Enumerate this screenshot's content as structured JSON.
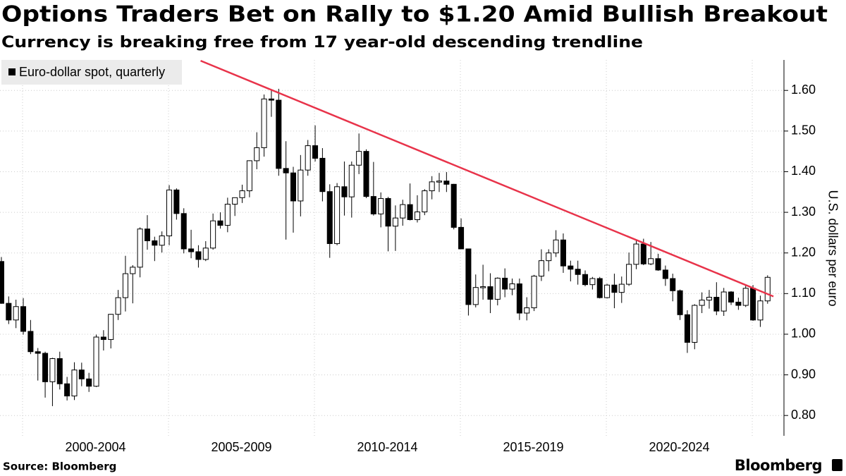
{
  "chart_data": {
    "type": "candlestick",
    "title": "Options Traders Bet on Rally to $1.20 Amid Bullish Breakout",
    "subtitle": "Currency is breaking free from 17 year-old descending trendline",
    "y_label": "U.S. dollars per euro",
    "source": "Source: Bloomberg",
    "brand": "Bloomberg",
    "legend_position": "top-left",
    "categories": [
      null,
      null,
      null,
      null,
      null,
      null,
      null,
      null,
      null,
      null,
      null,
      null,
      null,
      null,
      null,
      null,
      null,
      null,
      null,
      null,
      null,
      null,
      null,
      null,
      null,
      null,
      null,
      null,
      null,
      null,
      null,
      null,
      null,
      null,
      null,
      null,
      null,
      null,
      null,
      null,
      null,
      null,
      null,
      null,
      null,
      null,
      null,
      null,
      null,
      null,
      null,
      null,
      null,
      null,
      null,
      null,
      null,
      null,
      null,
      null,
      null,
      null,
      null,
      null,
      null,
      null,
      null,
      null,
      null,
      null,
      null,
      null,
      null,
      null,
      null,
      null,
      null,
      null,
      null,
      null,
      null,
      null,
      null,
      null,
      null,
      null,
      null,
      null,
      null,
      null,
      null,
      null,
      null,
      null,
      null,
      null,
      null,
      null,
      null,
      null,
      null,
      null,
      null,
      null,
      null,
      null
    ],
    "series": [
      {
        "name": "Euro-dollar spot, quarterly",
        "up_color": "#ffffff",
        "down_color": "#000000",
        "open": [
          1.179,
          1.076,
          1.035,
          1.068,
          1.007,
          0.957,
          0.953,
          0.883,
          0.94,
          0.878,
          0.848,
          0.912,
          0.89,
          0.872,
          0.993,
          0.987,
          1.049,
          1.09,
          1.149,
          1.165,
          1.259,
          1.23,
          1.219,
          1.242,
          1.355,
          1.297,
          1.21,
          1.203,
          1.184,
          1.212,
          1.279,
          1.268,
          1.32,
          1.336,
          1.353,
          1.427,
          1.459,
          1.579,
          1.576,
          1.408,
          1.397,
          1.328,
          1.404,
          1.464,
          1.433,
          1.351,
          1.223,
          1.363,
          1.338,
          1.416,
          1.45,
          1.339,
          1.296,
          1.334,
          1.266,
          1.286,
          1.319,
          1.282,
          1.301,
          1.353,
          1.375,
          1.377,
          1.369,
          1.263,
          1.21,
          1.073,
          1.115,
          1.117,
          1.086,
          1.138,
          1.111,
          1.124,
          1.052,
          1.065,
          1.143,
          1.181,
          1.2,
          1.232,
          1.168,
          1.16,
          1.147,
          1.122,
          1.137,
          1.09,
          1.121,
          1.103,
          1.123,
          1.172,
          1.222,
          1.173,
          1.186,
          1.158,
          1.137,
          1.107,
          1.048,
          0.98,
          1.071,
          1.084,
          1.091,
          1.057,
          1.104,
          1.079,
          1.071,
          1.113,
          1.035,
          1.082
        ],
        "high": [
          1.19,
          1.093,
          1.085,
          1.089,
          1.035,
          0.966,
          0.957,
          0.942,
          0.957,
          0.895,
          0.931,
          0.93,
          0.905,
          0.999,
          1.01,
          1.05,
          1.109,
          1.193,
          1.17,
          1.263,
          1.293,
          1.24,
          1.253,
          1.367,
          1.359,
          1.31,
          1.257,
          1.219,
          1.229,
          1.297,
          1.3,
          1.336,
          1.336,
          1.368,
          1.428,
          1.497,
          1.59,
          1.602,
          1.604,
          1.475,
          1.412,
          1.441,
          1.478,
          1.514,
          1.458,
          1.369,
          1.372,
          1.425,
          1.425,
          1.494,
          1.455,
          1.424,
          1.349,
          1.338,
          1.317,
          1.331,
          1.371,
          1.342,
          1.357,
          1.389,
          1.397,
          1.399,
          1.37,
          1.285,
          1.21,
          1.147,
          1.171,
          1.15,
          1.14,
          1.162,
          1.137,
          1.137,
          1.091,
          1.146,
          1.209,
          1.209,
          1.256,
          1.248,
          1.181,
          1.181,
          1.157,
          1.141,
          1.141,
          1.124,
          1.149,
          1.142,
          1.201,
          1.231,
          1.235,
          1.227,
          1.198,
          1.169,
          1.149,
          1.11,
          1.059,
          1.074,
          1.103,
          1.109,
          1.128,
          1.114,
          1.106,
          1.09,
          1.121,
          1.121,
          1.095,
          1.145
        ],
        "low": [
          1.075,
          1.025,
          1.015,
          0.999,
          0.951,
          0.886,
          0.844,
          0.823,
          0.864,
          0.837,
          0.838,
          0.872,
          0.858,
          0.87,
          0.96,
          0.965,
          1.035,
          1.056,
          1.076,
          1.14,
          1.208,
          1.18,
          1.201,
          1.219,
          1.282,
          1.199,
          1.187,
          1.164,
          1.18,
          1.208,
          1.26,
          1.251,
          1.291,
          1.323,
          1.337,
          1.406,
          1.437,
          1.535,
          1.39,
          1.233,
          1.25,
          1.29,
          1.39,
          1.425,
          1.327,
          1.188,
          1.219,
          1.292,
          1.287,
          1.394,
          1.335,
          1.292,
          1.263,
          1.204,
          1.205,
          1.267,
          1.28,
          1.275,
          1.293,
          1.332,
          1.35,
          1.35,
          1.258,
          1.21,
          1.046,
          1.066,
          1.085,
          1.052,
          1.071,
          1.091,
          1.096,
          1.035,
          1.034,
          1.057,
          1.131,
          1.155,
          1.19,
          1.151,
          1.13,
          1.122,
          1.118,
          1.11,
          1.088,
          1.088,
          1.064,
          1.077,
          1.119,
          1.16,
          1.17,
          1.17,
          1.156,
          1.119,
          1.081,
          1.035,
          0.954,
          0.963,
          1.052,
          1.063,
          1.047,
          1.045,
          1.072,
          1.06,
          1.067,
          1.033,
          1.018,
          1.075
        ],
        "close": [
          1.076,
          1.035,
          1.068,
          1.007,
          0.957,
          0.953,
          0.883,
          0.94,
          0.878,
          0.848,
          0.912,
          0.89,
          0.872,
          0.993,
          0.987,
          1.049,
          1.09,
          1.149,
          1.165,
          1.259,
          1.23,
          1.219,
          1.242,
          1.355,
          1.297,
          1.21,
          1.203,
          1.184,
          1.212,
          1.279,
          1.268,
          1.32,
          1.336,
          1.353,
          1.427,
          1.459,
          1.579,
          1.576,
          1.408,
          1.397,
          1.328,
          1.404,
          1.464,
          1.433,
          1.351,
          1.223,
          1.363,
          1.338,
          1.416,
          1.45,
          1.339,
          1.296,
          1.334,
          1.266,
          1.286,
          1.319,
          1.282,
          1.301,
          1.353,
          1.375,
          1.377,
          1.369,
          1.263,
          1.21,
          1.073,
          1.115,
          1.117,
          1.086,
          1.138,
          1.111,
          1.124,
          1.052,
          1.065,
          1.143,
          1.181,
          1.2,
          1.232,
          1.168,
          1.16,
          1.147,
          1.122,
          1.137,
          1.09,
          1.121,
          1.103,
          1.123,
          1.172,
          1.222,
          1.173,
          1.186,
          1.158,
          1.137,
          1.107,
          1.048,
          0.98,
          1.071,
          1.084,
          1.091,
          1.057,
          1.104,
          1.079,
          1.071,
          1.113,
          1.035,
          1.082,
          1.14
        ]
      }
    ],
    "trendline": {
      "color": "#e8334a",
      "start": [
        27.3,
        1.673
      ],
      "end": [
        105.8,
        1.093
      ]
    },
    "xlim": [
      -0.19,
      107.05
    ],
    "xticks": [
      {
        "value": 12.9,
        "label": "2000-2004"
      },
      {
        "value": 32.9,
        "label": "2005-2009"
      },
      {
        "value": 52.9,
        "label": "2010-2014"
      },
      {
        "value": 72.9,
        "label": "2015-2019"
      },
      {
        "value": 92.9,
        "label": "2020-2024"
      }
    ],
    "ylim": [
      0.75,
      1.675
    ],
    "yticks": [
      {
        "value": 0.8,
        "label": "0.80"
      },
      {
        "value": 0.9,
        "label": "0.90"
      },
      {
        "value": 1.0,
        "label": "1.00"
      },
      {
        "value": 1.1,
        "label": "1.10"
      },
      {
        "value": 1.2,
        "label": "1.20"
      },
      {
        "value": 1.3,
        "label": "1.30"
      },
      {
        "value": 1.4,
        "label": "1.40"
      },
      {
        "value": 1.5,
        "label": "1.50"
      },
      {
        "value": 1.6,
        "label": "1.60"
      }
    ],
    "grid": true
  }
}
